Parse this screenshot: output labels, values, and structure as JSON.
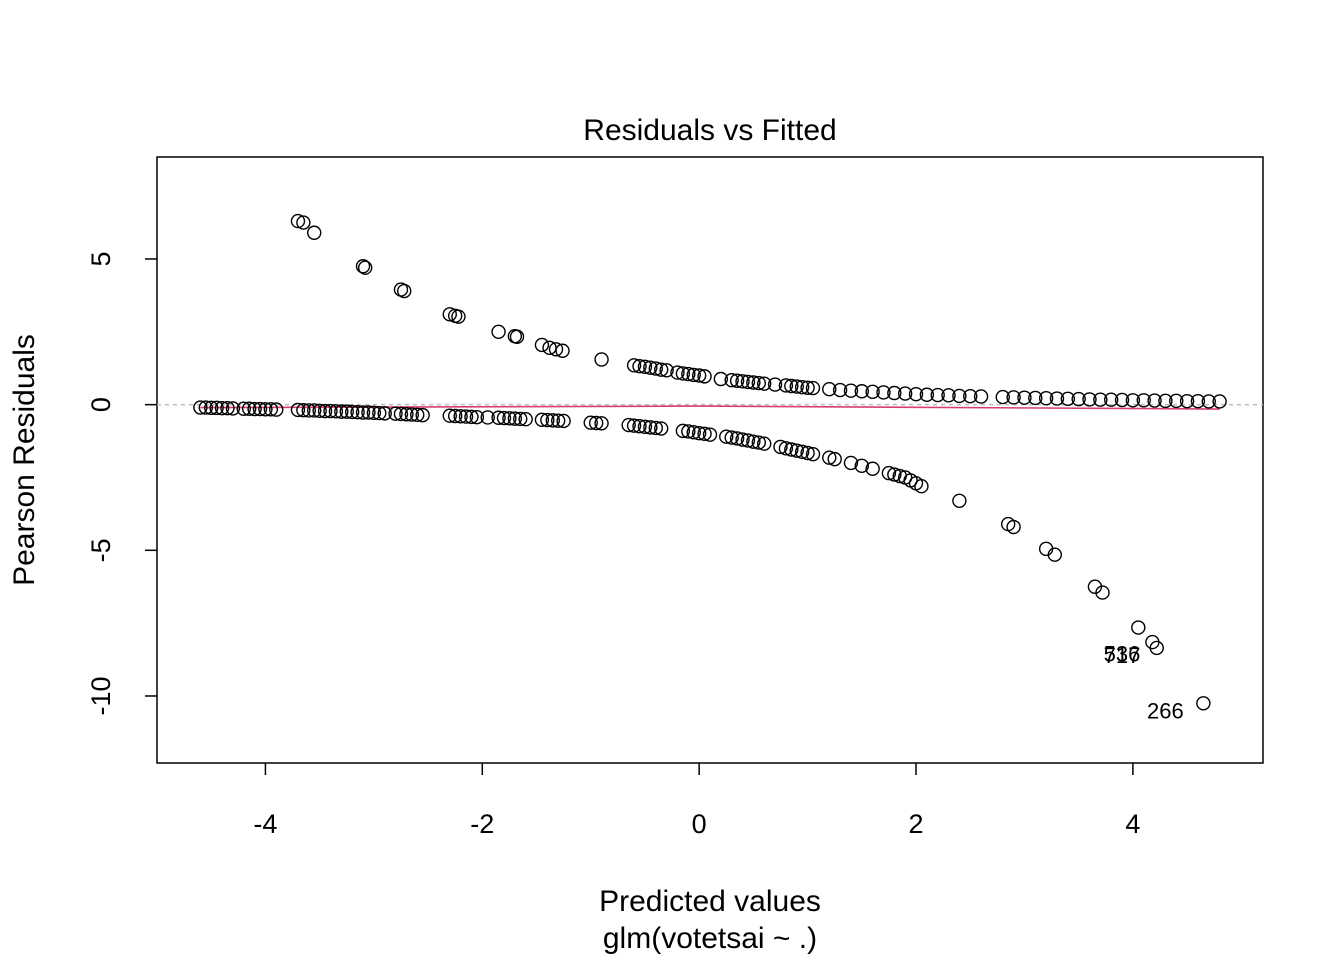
{
  "chart_data": {
    "type": "scatter",
    "title": "Residuals vs Fitted",
    "xlabel": "Predicted values",
    "sublabel": "glm(votetsai ~ .)",
    "ylabel": "Pearson Residuals",
    "xlim": [
      -5.0,
      5.2
    ],
    "ylim": [
      -12.3,
      8.5
    ],
    "x_ticks": [
      -4,
      -2,
      0,
      2,
      4
    ],
    "x_tick_labels": [
      "-4",
      "-2",
      "0",
      "2",
      "4"
    ],
    "y_ticks": [
      -10,
      -5,
      0,
      5
    ],
    "y_tick_labels": [
      "-10",
      "-5",
      "0",
      "5"
    ],
    "reference_line": {
      "y": 0,
      "style": "dashed",
      "color": "#bbbbbb"
    },
    "smooth_line": {
      "color": "#d6406b",
      "x": [
        -4.6,
        0,
        4.8
      ],
      "y": [
        -0.1,
        -0.05,
        -0.15
      ]
    },
    "grid": false,
    "legend": "none",
    "series": [
      {
        "upper_branch": {
          "x": [
            -3.7,
            -3.65,
            -3.55,
            -3.1,
            -3.08,
            -2.75,
            -2.72,
            -2.3,
            -2.25,
            -2.22,
            -1.85,
            -1.7,
            -1.68,
            -1.45,
            -1.38,
            -1.32,
            -1.26,
            -0.9,
            -0.6,
            -0.55,
            -0.5,
            -0.45,
            -0.4,
            -0.35,
            -0.3,
            -0.2,
            -0.15,
            -0.1,
            -0.05,
            0.0,
            0.05,
            0.2,
            0.3,
            0.35,
            0.4,
            0.45,
            0.5,
            0.55,
            0.6,
            0.7,
            0.8,
            0.85,
            0.9,
            0.95,
            1.0,
            1.05,
            1.2,
            1.3,
            1.4,
            1.5,
            1.6,
            1.7,
            1.8,
            1.9,
            2.0,
            2.1,
            2.2,
            2.3,
            2.4,
            2.5,
            2.6,
            2.8,
            2.9,
            3.0,
            3.1,
            3.2,
            3.3,
            3.4,
            3.5,
            3.6,
            3.7,
            3.8,
            3.9,
            4.0,
            4.1,
            4.2,
            4.3,
            4.4,
            4.5,
            4.6,
            4.7,
            4.8
          ],
          "y": [
            6.3,
            6.25,
            5.9,
            4.75,
            4.7,
            3.95,
            3.9,
            3.1,
            3.05,
            3.02,
            2.5,
            2.35,
            2.33,
            2.05,
            1.95,
            1.9,
            1.85,
            1.55,
            1.35,
            1.32,
            1.3,
            1.27,
            1.24,
            1.2,
            1.18,
            1.1,
            1.07,
            1.05,
            1.02,
            1.0,
            0.97,
            0.88,
            0.84,
            0.82,
            0.8,
            0.78,
            0.76,
            0.74,
            0.72,
            0.69,
            0.66,
            0.64,
            0.62,
            0.6,
            0.58,
            0.57,
            0.53,
            0.5,
            0.48,
            0.46,
            0.44,
            0.42,
            0.4,
            0.38,
            0.36,
            0.34,
            0.33,
            0.32,
            0.3,
            0.29,
            0.28,
            0.26,
            0.25,
            0.24,
            0.23,
            0.22,
            0.21,
            0.2,
            0.19,
            0.18,
            0.17,
            0.17,
            0.16,
            0.15,
            0.15,
            0.14,
            0.13,
            0.13,
            0.12,
            0.12,
            0.11,
            0.11
          ]
        }
      },
      {
        "lower_branch": {
          "x": [
            -4.6,
            -4.55,
            -4.5,
            -4.45,
            -4.4,
            -4.35,
            -4.3,
            -4.2,
            -4.15,
            -4.1,
            -4.05,
            -4.0,
            -3.95,
            -3.9,
            -3.7,
            -3.65,
            -3.6,
            -3.55,
            -3.5,
            -3.45,
            -3.4,
            -3.35,
            -3.3,
            -3.25,
            -3.2,
            -3.15,
            -3.1,
            -3.05,
            -3.0,
            -2.95,
            -2.9,
            -2.8,
            -2.75,
            -2.7,
            -2.65,
            -2.6,
            -2.55,
            -2.3,
            -2.25,
            -2.2,
            -2.15,
            -2.1,
            -2.05,
            -1.95,
            -1.85,
            -1.8,
            -1.75,
            -1.7,
            -1.65,
            -1.6,
            -1.45,
            -1.4,
            -1.35,
            -1.3,
            -1.25,
            -1.0,
            -0.95,
            -0.9,
            -0.65,
            -0.6,
            -0.55,
            -0.5,
            -0.45,
            -0.4,
            -0.35,
            -0.15,
            -0.1,
            -0.05,
            0.0,
            0.05,
            0.1,
            0.25,
            0.3,
            0.35,
            0.4,
            0.45,
            0.5,
            0.55,
            0.6,
            0.75,
            0.8,
            0.85,
            0.9,
            0.95,
            1.0,
            1.05,
            1.2,
            1.25,
            1.4,
            1.5,
            1.6,
            1.75,
            1.8,
            1.85,
            1.9,
            1.95,
            2.0,
            2.05,
            2.4,
            2.85,
            2.9,
            3.2,
            3.28,
            3.65,
            3.72,
            4.05,
            4.18,
            4.22,
            4.65
          ],
          "y": [
            -0.1,
            -0.1,
            -0.11,
            -0.11,
            -0.12,
            -0.12,
            -0.13,
            -0.14,
            -0.14,
            -0.15,
            -0.15,
            -0.16,
            -0.16,
            -0.17,
            -0.18,
            -0.19,
            -0.2,
            -0.2,
            -0.21,
            -0.22,
            -0.22,
            -0.23,
            -0.24,
            -0.24,
            -0.25,
            -0.26,
            -0.27,
            -0.27,
            -0.28,
            -0.29,
            -0.3,
            -0.31,
            -0.32,
            -0.33,
            -0.34,
            -0.35,
            -0.36,
            -0.38,
            -0.39,
            -0.4,
            -0.41,
            -0.42,
            -0.43,
            -0.44,
            -0.45,
            -0.46,
            -0.47,
            -0.48,
            -0.49,
            -0.5,
            -0.52,
            -0.53,
            -0.54,
            -0.55,
            -0.56,
            -0.62,
            -0.63,
            -0.64,
            -0.7,
            -0.72,
            -0.74,
            -0.76,
            -0.78,
            -0.8,
            -0.82,
            -0.9,
            -0.92,
            -0.95,
            -0.98,
            -1.0,
            -1.03,
            -1.1,
            -1.13,
            -1.16,
            -1.2,
            -1.23,
            -1.27,
            -1.3,
            -1.34,
            -1.45,
            -1.5,
            -1.54,
            -1.58,
            -1.62,
            -1.66,
            -1.7,
            -1.82,
            -1.87,
            -2.0,
            -2.1,
            -2.2,
            -2.35,
            -2.4,
            -2.45,
            -2.5,
            -2.6,
            -2.7,
            -2.8,
            -3.3,
            -4.1,
            -4.2,
            -4.95,
            -5.15,
            -6.25,
            -6.45,
            -7.65,
            -8.15,
            -8.35,
            -10.25
          ]
        }
      }
    ],
    "annotations": [
      {
        "label": "536",
        "x": 3.9,
        "y": -8.55
      },
      {
        "label": "717",
        "x": 3.9,
        "y": -8.6
      },
      {
        "label": "266",
        "x": 4.3,
        "y": -10.5
      }
    ]
  }
}
